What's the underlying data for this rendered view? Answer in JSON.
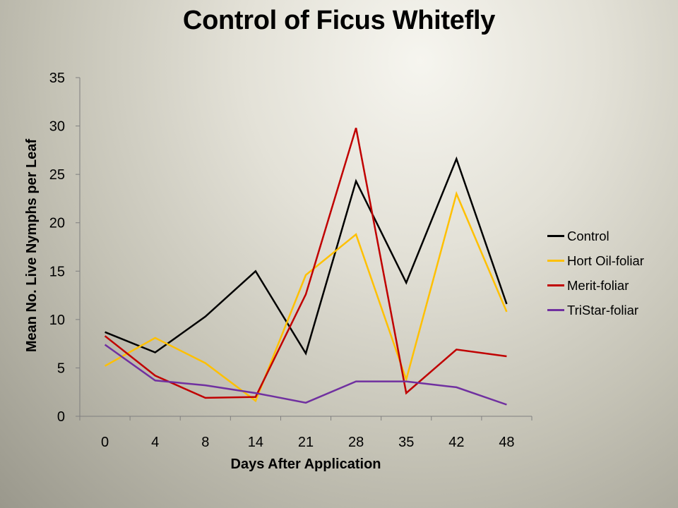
{
  "chart_data": {
    "type": "line",
    "title": "Control of Ficus Whitefly",
    "xlabel": "Days After Application",
    "ylabel": "Mean No. Live Nymphs per Leaf",
    "categories": [
      "0",
      "4",
      "8",
      "14",
      "21",
      "28",
      "35",
      "42",
      "48"
    ],
    "ylim": [
      0,
      35
    ],
    "yticks": [
      "0",
      "5",
      "10",
      "15",
      "20",
      "25",
      "30",
      "35"
    ],
    "grid": false,
    "legend_position": "right",
    "series": [
      {
        "name": "Control",
        "color": "#000000",
        "values": [
          8.7,
          6.6,
          10.3,
          15.0,
          6.5,
          24.3,
          13.8,
          26.6,
          11.6
        ]
      },
      {
        "name": "Hort Oil-foliar",
        "color": "#FFC000",
        "values": [
          5.2,
          8.1,
          5.5,
          1.6,
          14.6,
          18.8,
          3.8,
          23.0,
          10.8
        ]
      },
      {
        "name": "Merit-foliar",
        "color": "#C00000",
        "values": [
          8.3,
          4.2,
          1.9,
          2.0,
          12.6,
          29.8,
          2.4,
          6.9,
          6.2
        ]
      },
      {
        "name": "TriStar-foliar",
        "color": "#7030A0",
        "values": [
          7.4,
          3.7,
          3.2,
          2.4,
          1.4,
          3.6,
          3.6,
          3.0,
          1.2
        ]
      }
    ]
  }
}
